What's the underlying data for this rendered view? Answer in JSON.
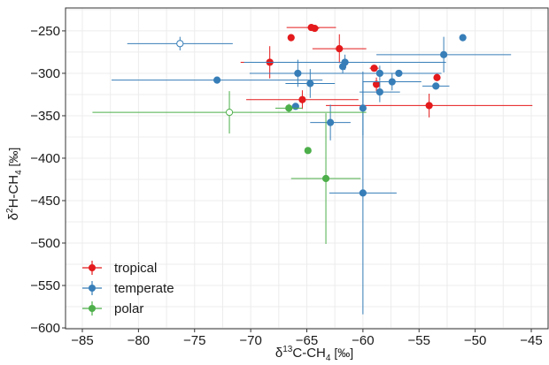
{
  "chart_data": {
    "type": "scatter",
    "xlabel_parts": [
      "δ",
      "13",
      "C-CH",
      "4",
      " [‰]"
    ],
    "ylabel_parts": [
      "δ",
      "2",
      "H-CH",
      "4",
      " [‰]"
    ],
    "xlim": [
      -86.5,
      -43.5
    ],
    "ylim": [
      -601,
      -223
    ],
    "xticks": [
      -85,
      -80,
      -75,
      -70,
      -65,
      -60,
      -55,
      -50,
      -45
    ],
    "yticks": [
      -250,
      -300,
      -350,
      -400,
      -450,
      -500,
      -550,
      -600
    ],
    "grid": true,
    "legend_position": "bottom-left",
    "series": [
      {
        "name": "tropical",
        "color": "#e41a1c",
        "points": [
          {
            "x": -64.6,
            "y": -246,
            "xerr": 2.2,
            "yerr": 0,
            "filled": true
          },
          {
            "x": -64.3,
            "y": -247,
            "xerr": 0.4,
            "yerr": 0,
            "filled": true
          },
          {
            "x": -66.4,
            "y": -258,
            "xerr": 0,
            "yerr": 0,
            "filled": true
          },
          {
            "x": -62.1,
            "y": -271,
            "xerr": 2.4,
            "yerr": 17,
            "filled": true
          },
          {
            "x": -68.3,
            "y": -287,
            "xerr": 2.6,
            "yerr": 19,
            "filled": true
          },
          {
            "x": -59.0,
            "y": -294,
            "xerr": 0.4,
            "yerr": 0,
            "filled": true
          },
          {
            "x": -58.8,
            "y": -313,
            "xerr": 0,
            "yerr": 8,
            "filled": true
          },
          {
            "x": -53.4,
            "y": -305,
            "xerr": 0,
            "yerr": 0,
            "filled": true
          },
          {
            "x": -65.4,
            "y": -331,
            "xerr": 5.0,
            "yerr": 11,
            "filled": true
          },
          {
            "x": -54.1,
            "y": -338,
            "xerr": 9.2,
            "yerr": 14,
            "filled": true
          }
        ]
      },
      {
        "name": "temperate",
        "color": "#377eb8",
        "points": [
          {
            "x": -76.3,
            "y": -265,
            "xerr": 4.7,
            "yerr": 8,
            "filled": false
          },
          {
            "x": -73.0,
            "y": -308,
            "xerr": 9.4,
            "yerr": 0,
            "filled": true
          },
          {
            "x": -51.1,
            "y": -258,
            "xerr": 0,
            "yerr": 0,
            "filled": true
          },
          {
            "x": -52.8,
            "y": -278,
            "xerr": 6.0,
            "yerr": 21,
            "filled": true
          },
          {
            "x": -65.8,
            "y": -300,
            "xerr": 4.3,
            "yerr": 16,
            "filled": true
          },
          {
            "x": -64.7,
            "y": -312,
            "xerr": 2.2,
            "yerr": 17,
            "filled": true
          },
          {
            "x": -61.8,
            "y": -292,
            "xerr": 0,
            "yerr": 8,
            "filled": true
          },
          {
            "x": -61.6,
            "y": -287,
            "xerr": 9.0,
            "yerr": 9,
            "filled": true
          },
          {
            "x": -58.5,
            "y": -300,
            "xerr": 3.5,
            "yerr": 9,
            "filled": true
          },
          {
            "x": -56.8,
            "y": -300,
            "xerr": 3.8,
            "yerr": 0,
            "filled": true
          },
          {
            "x": -57.4,
            "y": -310,
            "xerr": 2.6,
            "yerr": 10,
            "filled": true
          },
          {
            "x": -58.5,
            "y": -322,
            "xerr": 1.8,
            "yerr": 12,
            "filled": true
          },
          {
            "x": -53.5,
            "y": -315,
            "xerr": 1.2,
            "yerr": 0,
            "filled": true
          },
          {
            "x": -66.0,
            "y": -339,
            "xerr": 0,
            "yerr": 0,
            "filled": true
          },
          {
            "x": -60.0,
            "y": -341,
            "xerr": 0,
            "yerr": 32,
            "filled": true
          },
          {
            "x": -62.9,
            "y": -358,
            "xerr": 1.8,
            "yerr": 21,
            "filled": true
          },
          {
            "x": -60.0,
            "y": -441,
            "xerr": 3.0,
            "yerr": 143,
            "filled": true
          }
        ]
      },
      {
        "name": "polar",
        "color": "#4daf4a",
        "points": [
          {
            "x": -71.9,
            "y": -346,
            "xerr": 12.2,
            "yerr": 25,
            "filled": false
          },
          {
            "x": -66.6,
            "y": -341,
            "xerr": 1.2,
            "yerr": 5,
            "filled": true
          },
          {
            "x": -64.9,
            "y": -391,
            "xerr": 0,
            "yerr": 0,
            "filled": true
          },
          {
            "x": -63.3,
            "y": -424,
            "xerr": 3.1,
            "yerr": 77,
            "filled": true
          }
        ]
      }
    ]
  }
}
